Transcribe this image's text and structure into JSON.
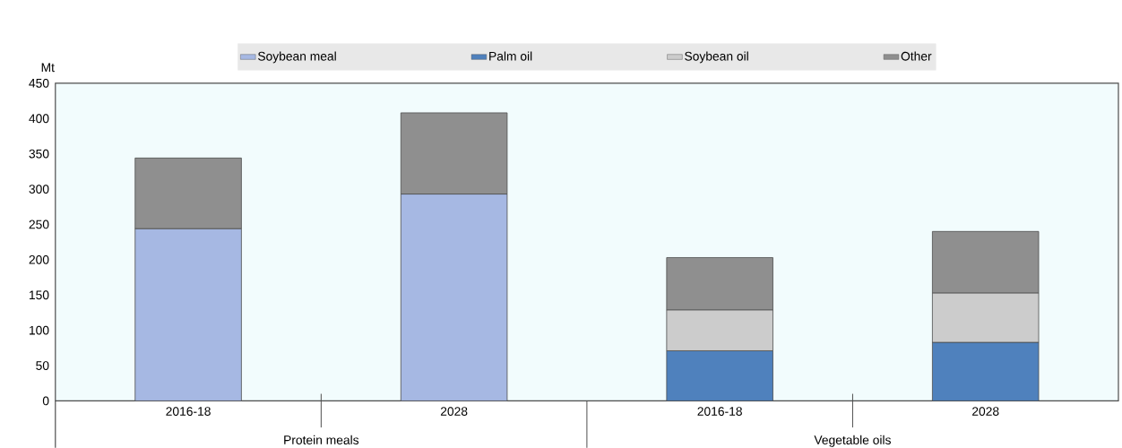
{
  "chart_data": {
    "type": "bar",
    "stacked": true,
    "ylabel": "Mt",
    "categories": [
      "2016-18",
      "2028",
      "2016-18",
      "2028"
    ],
    "series": [
      {
        "name": "Soybean meal",
        "color": "#a6b8e3",
        "values": [
          244,
          293,
          null,
          null
        ]
      },
      {
        "name": "Palm oil",
        "color": "#4f81bd",
        "values": [
          null,
          null,
          71,
          83
        ]
      },
      {
        "name": "Soybean oil",
        "color": "#cccccc",
        "values": [
          null,
          null,
          58,
          70
        ]
      },
      {
        "name": "Other",
        "color": "#8f8f8f",
        "values": [
          100,
          115,
          74,
          87
        ]
      }
    ],
    "ylim": [
      0,
      450
    ],
    "yticks": [
      0,
      50,
      100,
      150,
      200,
      250,
      300,
      350,
      400,
      450
    ],
    "annotations": [
      "Protein meals",
      "Vegetable oils"
    ],
    "legend": "top",
    "grid": false
  }
}
